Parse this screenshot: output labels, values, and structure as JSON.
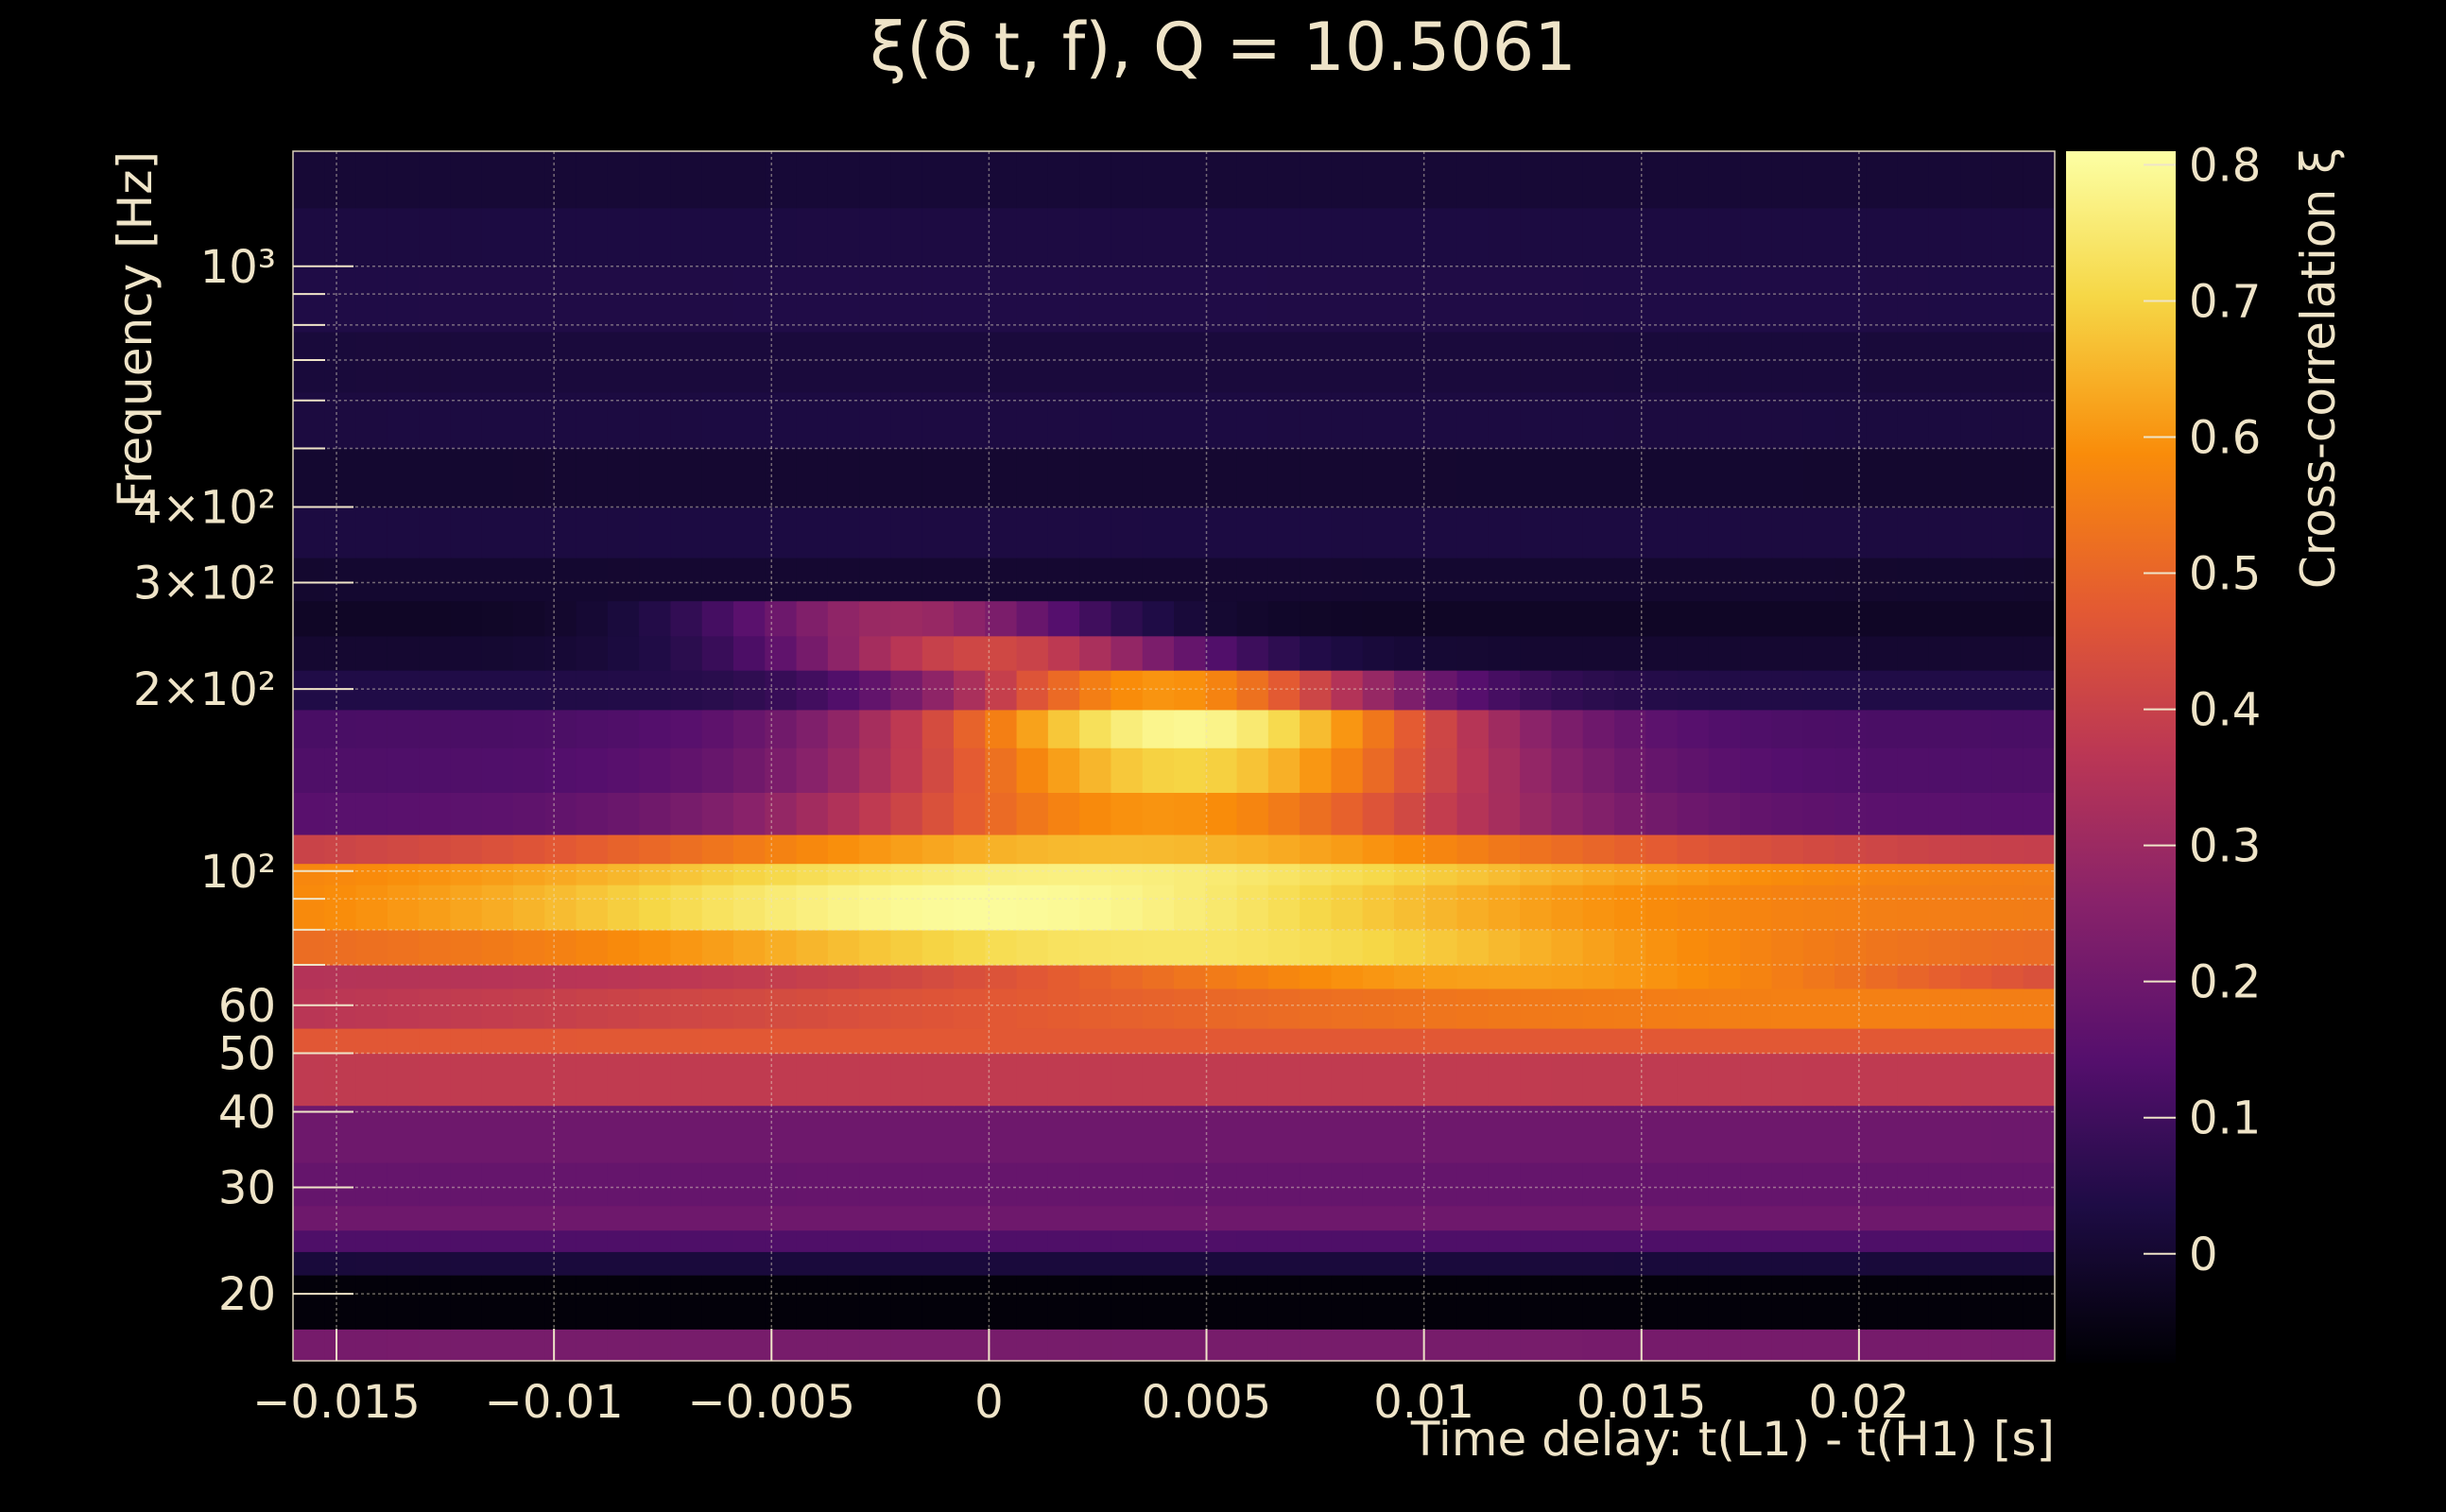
{
  "chart_data": {
    "type": "heatmap",
    "title": "ξ(δ t, f), Q = 10.5061",
    "xlabel": "Time delay: t(L1) - t(H1) [s]",
    "ylabel": "Frequency [Hz]",
    "zlabel": "Cross-correlation ξ",
    "xlim": [
      -0.016,
      0.0245
    ],
    "ylim": [
      15.5,
      1550
    ],
    "yscale": "log",
    "zlim": [
      -0.08,
      0.81
    ],
    "grid": true,
    "colormap": "inferno",
    "x_ticks": [
      {
        "value": -0.015,
        "label": "−0.015"
      },
      {
        "value": -0.01,
        "label": "−0.01"
      },
      {
        "value": -0.005,
        "label": "−0.005"
      },
      {
        "value": 0,
        "label": "0"
      },
      {
        "value": 0.005,
        "label": "0.005"
      },
      {
        "value": 0.01,
        "label": "0.01"
      },
      {
        "value": 0.015,
        "label": "0.015"
      },
      {
        "value": 0.02,
        "label": "0.02"
      }
    ],
    "y_ticks": [
      {
        "value": 20,
        "label": "20"
      },
      {
        "value": 30,
        "label": "30"
      },
      {
        "value": 40,
        "label": "40"
      },
      {
        "value": 50,
        "label": "50"
      },
      {
        "value": 60,
        "label": "60"
      },
      {
        "value": 100,
        "label": "10²"
      },
      {
        "value": 200,
        "label": "2×10²"
      },
      {
        "value": 300,
        "label": "3×10²"
      },
      {
        "value": 400,
        "label": "4×10²"
      },
      {
        "value": 1000,
        "label": "10³"
      }
    ],
    "z_ticks": [
      0,
      0.1,
      0.2,
      0.3,
      0.4,
      0.5,
      0.6,
      0.7,
      0.8
    ],
    "frequency_bands": [
      {
        "f_low": 15.5,
        "f_high": 17.5,
        "peak": 0.22,
        "t_peak": 0.0,
        "width": 0.05,
        "floor": 0.2
      },
      {
        "f_low": 17.5,
        "f_high": 21.5,
        "peak": -0.07,
        "t_peak": 0.0,
        "width": 0.05,
        "floor": -0.07
      },
      {
        "f_low": 21.5,
        "f_high": 23.5,
        "peak": 0.02,
        "t_peak": 0.0,
        "width": 0.05,
        "floor": 0.0
      },
      {
        "f_low": 23.5,
        "f_high": 25.5,
        "peak": 0.13,
        "t_peak": 0.0,
        "width": 0.05,
        "floor": 0.12
      },
      {
        "f_low": 25.5,
        "f_high": 28.0,
        "peak": 0.2,
        "t_peak": 0.01,
        "width": 0.05,
        "floor": 0.2
      },
      {
        "f_low": 28.0,
        "f_high": 33.0,
        "peak": 0.18,
        "t_peak": 0.0,
        "width": 0.05,
        "floor": 0.17
      },
      {
        "f_low": 33.0,
        "f_high": 41.0,
        "peak": 0.2,
        "t_peak": 0.0,
        "width": 0.05,
        "floor": 0.19
      },
      {
        "f_low": 41.0,
        "f_high": 50.0,
        "peak": 0.38,
        "t_peak": 0.0,
        "width": 0.05,
        "floor": 0.37
      },
      {
        "f_low": 50.0,
        "f_high": 55.0,
        "peak": 0.47,
        "t_peak": 0.01,
        "width": 0.05,
        "floor": 0.45
      },
      {
        "f_low": 55.0,
        "f_high": 64.0,
        "peak": 0.56,
        "t_peak": 0.02,
        "width": 0.03,
        "floor": 0.3
      },
      {
        "f_low": 64.0,
        "f_high": 70.0,
        "peak": 0.62,
        "t_peak": 0.012,
        "width": 0.012,
        "floor": 0.35
      },
      {
        "f_low": 70.0,
        "f_high": 80.0,
        "peak": 0.74,
        "t_peak": 0.004,
        "width": 0.012,
        "floor": 0.5
      },
      {
        "f_low": 80.0,
        "f_high": 95.0,
        "peak": 0.8,
        "t_peak": 0.0,
        "width": 0.011,
        "floor": 0.55
      },
      {
        "f_low": 95.0,
        "f_high": 103.0,
        "peak": 0.77,
        "t_peak": 0.002,
        "width": 0.012,
        "floor": 0.55
      },
      {
        "f_low": 103.0,
        "f_high": 115.0,
        "peak": 0.66,
        "t_peak": 0.003,
        "width": 0.012,
        "floor": 0.38
      },
      {
        "f_low": 115.0,
        "f_high": 135.0,
        "peak": 0.6,
        "t_peak": 0.004,
        "width": 0.008,
        "floor": 0.15
      },
      {
        "f_low": 135.0,
        "f_high": 160.0,
        "peak": 0.7,
        "t_peak": 0.0045,
        "width": 0.007,
        "floor": 0.13
      },
      {
        "f_low": 160.0,
        "f_high": 185.0,
        "peak": 0.79,
        "t_peak": 0.0045,
        "width": 0.0065,
        "floor": 0.12
      },
      {
        "f_low": 185.0,
        "f_high": 215.0,
        "peak": 0.6,
        "t_peak": 0.004,
        "width": 0.0055,
        "floor": 0.04
      },
      {
        "f_low": 215.0,
        "f_high": 245.0,
        "peak": 0.42,
        "t_peak": 0.0,
        "width": 0.005,
        "floor": 0.0
      },
      {
        "f_low": 245.0,
        "f_high": 280.0,
        "peak": 0.3,
        "t_peak": -0.002,
        "width": 0.0045,
        "floor": -0.02
      },
      {
        "f_low": 280.0,
        "f_high": 330.0,
        "peak": 0.0,
        "t_peak": 0.0,
        "width": 0.05,
        "floor": -0.03
      },
      {
        "f_low": 330.0,
        "f_high": 400.0,
        "peak": 0.03,
        "t_peak": 0.0,
        "width": 0.05,
        "floor": 0.01
      },
      {
        "f_low": 400.0,
        "f_high": 500.0,
        "peak": 0.0,
        "t_peak": 0.0,
        "width": 0.05,
        "floor": -0.02
      },
      {
        "f_low": 500.0,
        "f_high": 620.0,
        "peak": 0.03,
        "t_peak": 0.0,
        "width": 0.05,
        "floor": 0.0
      },
      {
        "f_low": 620.0,
        "f_high": 780.0,
        "peak": 0.02,
        "t_peak": 0.0,
        "width": 0.05,
        "floor": 0.0
      },
      {
        "f_low": 780.0,
        "f_high": 1000.0,
        "peak": 0.04,
        "t_peak": 0.0,
        "width": 0.05,
        "floor": 0.02
      },
      {
        "f_low": 1000.0,
        "f_high": 1250.0,
        "peak": 0.03,
        "t_peak": 0.0,
        "width": 0.05,
        "floor": 0.02
      },
      {
        "f_low": 1250.0,
        "f_high": 1550.0,
        "peak": 0.01,
        "t_peak": 0.0,
        "width": 0.05,
        "floor": 0.0
      }
    ]
  }
}
